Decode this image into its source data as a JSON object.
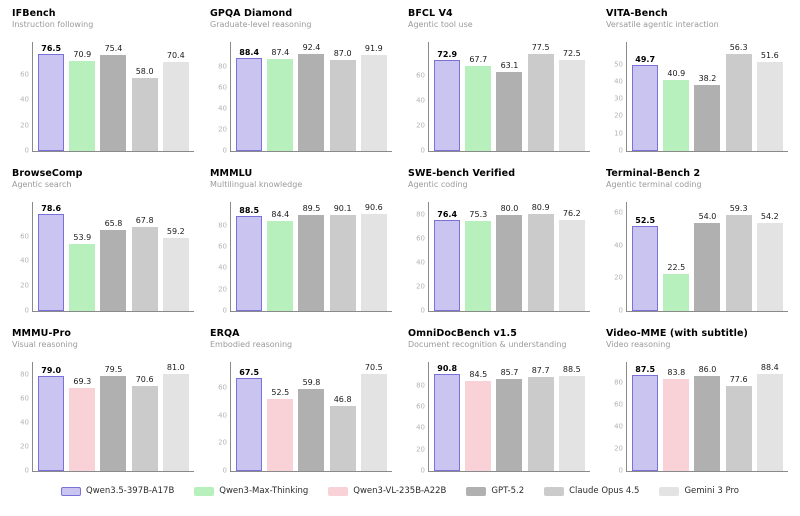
{
  "colors": {
    "accent_purple_fill": "#c9c5f0",
    "accent_purple_border": "#7a72d8",
    "green_fill": "#b8f0bd",
    "pink_fill": "#f9d2d8",
    "gpt_gray": "#b0b0b0",
    "claude_gray": "#cbcbcb",
    "gemini_gray": "#e3e3e3",
    "axis_spine": "#8a8a8a",
    "tick_label": "#b3b3b3",
    "subtitle_gray": "#9a9a9a"
  },
  "models": [
    {
      "name": "Qwen3.5-397B-A17B",
      "fill": "#c9c5f0",
      "border": "#7a72d8"
    },
    {
      "name": "Qwen3-Max-Thinking",
      "fill": "#b8f0bd",
      "border": null
    },
    {
      "name": "Qwen3-VL-235B-A22B",
      "fill": "#f9d2d8",
      "border": null
    },
    {
      "name": "GPT-5.2",
      "fill": "#b0b0b0",
      "border": null
    },
    {
      "name": "Claude Opus 4.5",
      "fill": "#cbcbcb",
      "border": null
    },
    {
      "name": "Gemini 3 Pro",
      "fill": "#e3e3e3",
      "border": null
    }
  ],
  "chart_data": [
    {
      "type": "bar",
      "title": "IFBench",
      "subtitle": "Instruction following",
      "series": [
        "Qwen3.5-397B-A17B",
        "Qwen3-Max-Thinking",
        "GPT-5.2",
        "Claude Opus 4.5",
        "Gemini 3 Pro"
      ],
      "values": [
        76.5,
        70.9,
        75.4,
        58.0,
        70.4
      ],
      "labels": [
        "76.5",
        "70.9",
        "75.4",
        "58.0",
        "70.4"
      ],
      "yticks": [
        0,
        20,
        40,
        60
      ],
      "ylim": [
        0,
        86
      ],
      "grid": false,
      "legend_position": "figure-bottom"
    },
    {
      "type": "bar",
      "title": "GPQA Diamond",
      "subtitle": "Graduate-level reasoning",
      "series": [
        "Qwen3.5-397B-A17B",
        "Qwen3-Max-Thinking",
        "GPT-5.2",
        "Claude Opus 4.5",
        "Gemini 3 Pro"
      ],
      "values": [
        88.4,
        87.4,
        92.4,
        87.0,
        91.9
      ],
      "labels": [
        "88.4",
        "87.4",
        "92.4",
        "87.0",
        "91.9"
      ],
      "yticks": [
        0,
        20,
        40,
        60,
        80
      ],
      "ylim": [
        0,
        104
      ],
      "grid": false,
      "legend_position": "figure-bottom"
    },
    {
      "type": "bar",
      "title": "BFCL V4",
      "subtitle": "Agentic tool use",
      "series": [
        "Qwen3.5-397B-A17B",
        "Qwen3-Max-Thinking",
        "GPT-5.2",
        "Claude Opus 4.5",
        "Gemini 3 Pro"
      ],
      "values": [
        72.9,
        67.7,
        63.1,
        77.5,
        72.5
      ],
      "labels": [
        "72.9",
        "67.7",
        "63.1",
        "77.5",
        "72.5"
      ],
      "yticks": [
        0,
        20,
        40,
        60
      ],
      "ylim": [
        0,
        87
      ],
      "grid": false,
      "legend_position": "figure-bottom"
    },
    {
      "type": "bar",
      "title": "VITA-Bench",
      "subtitle": "Versatile agentic interaction",
      "series": [
        "Qwen3.5-397B-A17B",
        "Qwen3-Max-Thinking",
        "GPT-5.2",
        "Claude Opus 4.5",
        "Gemini 3 Pro"
      ],
      "values": [
        49.7,
        40.9,
        38.2,
        56.3,
        51.6
      ],
      "labels": [
        "49.7",
        "40.9",
        "38.2",
        "56.3",
        "51.6"
      ],
      "yticks": [
        0,
        10,
        20,
        30,
        40,
        50
      ],
      "ylim": [
        0,
        63
      ],
      "grid": false,
      "legend_position": "figure-bottom"
    },
    {
      "type": "bar",
      "title": "BrowseComp",
      "subtitle": "Agentic search",
      "series": [
        "Qwen3.5-397B-A17B",
        "Qwen3-Max-Thinking",
        "GPT-5.2",
        "Claude Opus 4.5",
        "Gemini 3 Pro"
      ],
      "values": [
        78.6,
        53.9,
        65.8,
        67.8,
        59.2
      ],
      "labels": [
        "78.6",
        "53.9",
        "65.8",
        "67.8",
        "59.2"
      ],
      "yticks": [
        0,
        20,
        40,
        60
      ],
      "ylim": [
        0,
        88
      ],
      "grid": false,
      "legend_position": "figure-bottom"
    },
    {
      "type": "bar",
      "title": "MMMLU",
      "subtitle": "Multilingual knowledge",
      "series": [
        "Qwen3.5-397B-A17B",
        "Qwen3-Max-Thinking",
        "GPT-5.2",
        "Claude Opus 4.5",
        "Gemini 3 Pro"
      ],
      "values": [
        88.5,
        84.4,
        89.5,
        90.1,
        90.6
      ],
      "labels": [
        "88.5",
        "84.4",
        "89.5",
        "90.1",
        "90.6"
      ],
      "yticks": [
        0,
        20,
        40,
        60,
        80
      ],
      "ylim": [
        0,
        102
      ],
      "grid": false,
      "legend_position": "figure-bottom"
    },
    {
      "type": "bar",
      "title": "SWE-bench Verified",
      "subtitle": "Agentic coding",
      "series": [
        "Qwen3.5-397B-A17B",
        "Qwen3-Max-Thinking",
        "GPT-5.2",
        "Claude Opus 4.5",
        "Gemini 3 Pro"
      ],
      "values": [
        76.4,
        75.3,
        80.0,
        80.9,
        76.2
      ],
      "labels": [
        "76.4",
        "75.3",
        "80.0",
        "80.9",
        "76.2"
      ],
      "yticks": [
        0,
        20,
        40,
        60,
        80
      ],
      "ylim": [
        0,
        91
      ],
      "grid": false,
      "legend_position": "figure-bottom"
    },
    {
      "type": "bar",
      "title": "Terminal-Bench 2",
      "subtitle": "Agentic terminal coding",
      "series": [
        "Qwen3.5-397B-A17B",
        "Qwen3-Max-Thinking",
        "GPT-5.2",
        "Claude Opus 4.5",
        "Gemini 3 Pro"
      ],
      "values": [
        52.5,
        22.5,
        54.0,
        59.3,
        54.2
      ],
      "labels": [
        "52.5",
        "22.5",
        "54.0",
        "59.3",
        "54.2"
      ],
      "yticks": [
        0,
        20,
        40,
        60
      ],
      "ylim": [
        0,
        67
      ],
      "grid": false,
      "legend_position": "figure-bottom"
    },
    {
      "type": "bar",
      "title": "MMMU-Pro",
      "subtitle": "Visual reasoning",
      "series": [
        "Qwen3.5-397B-A17B",
        "Qwen3-VL-235B-A22B",
        "GPT-5.2",
        "Claude Opus 4.5",
        "Gemini 3 Pro"
      ],
      "values": [
        79.0,
        69.3,
        79.5,
        70.6,
        81.0
      ],
      "labels": [
        "79.0",
        "69.3",
        "79.5",
        "70.6",
        "81.0"
      ],
      "yticks": [
        0,
        20,
        40,
        60,
        80
      ],
      "ylim": [
        0,
        91
      ],
      "grid": false,
      "legend_position": "figure-bottom"
    },
    {
      "type": "bar",
      "title": "ERQA",
      "subtitle": "Embodied reasoning",
      "series": [
        "Qwen3.5-397B-A17B",
        "Qwen3-VL-235B-A22B",
        "GPT-5.2",
        "Claude Opus 4.5",
        "Gemini 3 Pro"
      ],
      "values": [
        67.5,
        52.5,
        59.8,
        46.8,
        70.5
      ],
      "labels": [
        "67.5",
        "52.5",
        "59.8",
        "46.8",
        "70.5"
      ],
      "yticks": [
        0,
        20,
        40,
        60
      ],
      "ylim": [
        0,
        79
      ],
      "grid": false,
      "legend_position": "figure-bottom"
    },
    {
      "type": "bar",
      "title": "OmniDocBench v1.5",
      "subtitle": "Document recognition & understanding",
      "series": [
        "Qwen3.5-397B-A17B",
        "Qwen3-VL-235B-A22B",
        "GPT-5.2",
        "Claude Opus 4.5",
        "Gemini 3 Pro"
      ],
      "values": [
        90.8,
        84.5,
        85.7,
        87.7,
        88.5
      ],
      "labels": [
        "90.8",
        "84.5",
        "85.7",
        "87.7",
        "88.5"
      ],
      "yticks": [
        0,
        20,
        40,
        60,
        80
      ],
      "ylim": [
        0,
        102
      ],
      "grid": false,
      "legend_position": "figure-bottom"
    },
    {
      "type": "bar",
      "title": "Video-MME (with subtitle)",
      "subtitle": "Video reasoning",
      "series": [
        "Qwen3.5-397B-A17B",
        "Qwen3-VL-235B-A22B",
        "GPT-5.2",
        "Claude Opus 4.5",
        "Gemini 3 Pro"
      ],
      "values": [
        87.5,
        83.8,
        86.0,
        77.6,
        88.4
      ],
      "labels": [
        "87.5",
        "83.8",
        "86.0",
        "77.6",
        "88.4"
      ],
      "yticks": [
        0,
        20,
        40,
        60,
        80
      ],
      "ylim": [
        0,
        99
      ],
      "grid": false,
      "legend_position": "figure-bottom"
    }
  ]
}
